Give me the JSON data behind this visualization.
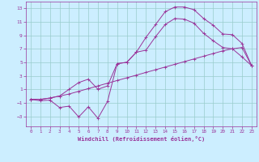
{
  "xlabel": "Windchill (Refroidissement éolien,°C)",
  "background_color": "#cceeff",
  "grid_color": "#99cccc",
  "line_color": "#993399",
  "xlim": [
    -0.5,
    23.5
  ],
  "ylim": [
    -4.5,
    14.0
  ],
  "xticks": [
    0,
    1,
    2,
    3,
    4,
    5,
    6,
    7,
    8,
    9,
    10,
    11,
    12,
    13,
    14,
    15,
    16,
    17,
    18,
    19,
    20,
    21,
    22,
    23
  ],
  "yticks": [
    -3,
    -1,
    1,
    3,
    5,
    7,
    9,
    11,
    13
  ],
  "line1_x": [
    0,
    1,
    2,
    3,
    4,
    5,
    6,
    7,
    8,
    9,
    10,
    11,
    12,
    13,
    14,
    15,
    16,
    17,
    18,
    19,
    20,
    21,
    22,
    23
  ],
  "line1_y": [
    -0.5,
    -0.5,
    -0.3,
    0.0,
    0.3,
    0.7,
    1.1,
    1.5,
    1.9,
    2.3,
    2.7,
    3.1,
    3.5,
    3.9,
    4.3,
    4.7,
    5.1,
    5.5,
    5.9,
    6.3,
    6.7,
    7.0,
    7.2,
    4.5
  ],
  "line2_x": [
    0,
    1,
    2,
    3,
    4,
    5,
    6,
    7,
    8,
    9,
    10,
    11,
    12,
    13,
    14,
    15,
    16,
    17,
    18,
    19,
    20,
    21,
    22,
    23
  ],
  "line2_y": [
    -0.5,
    -0.7,
    -0.6,
    -1.7,
    -1.5,
    -3.1,
    -1.6,
    -3.3,
    -0.8,
    4.8,
    5.0,
    6.5,
    8.7,
    10.6,
    12.5,
    13.2,
    13.2,
    12.8,
    11.5,
    10.5,
    9.2,
    9.1,
    7.8,
    4.5
  ],
  "line3_x": [
    0,
    1,
    2,
    3,
    4,
    5,
    6,
    7,
    8,
    9,
    10,
    11,
    12,
    13,
    14,
    15,
    16,
    17,
    18,
    19,
    20,
    21,
    22,
    23
  ],
  "line3_y": [
    -0.5,
    -0.5,
    -0.3,
    0.0,
    1.0,
    2.0,
    2.5,
    1.0,
    1.5,
    4.8,
    5.0,
    6.5,
    6.8,
    8.8,
    10.6,
    11.5,
    11.4,
    10.8,
    9.3,
    8.2,
    7.2,
    7.0,
    5.8,
    4.5
  ]
}
